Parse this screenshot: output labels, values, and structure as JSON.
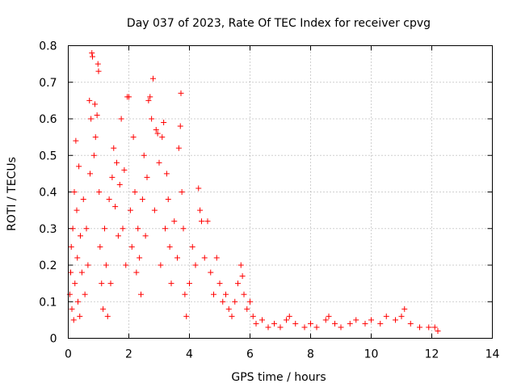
{
  "chart_data": {
    "type": "scatter",
    "title": "Day 037 of 2023, Rate Of TEC Index for receiver cpvg",
    "xlabel": "GPS time / hours",
    "ylabel": "ROTI / TECUs",
    "xlim": [
      0,
      14
    ],
    "ylim": [
      0,
      0.8
    ],
    "x_ticks": [
      0,
      2,
      4,
      6,
      8,
      10,
      12,
      14
    ],
    "y_ticks": [
      0,
      0.1,
      0.2,
      0.3,
      0.4,
      0.5,
      0.6,
      0.7,
      0.8
    ],
    "x_tick_labels": [
      "0",
      "2",
      "4",
      "6",
      "8",
      "10",
      "12",
      "14"
    ],
    "y_tick_labels": [
      "0",
      "0.1",
      "0.2",
      "0.3",
      "0.4",
      "0.5",
      "0.6",
      "0.7",
      "0.8"
    ],
    "grid": true,
    "marker": "plus",
    "color": "#ff0000",
    "series": [
      {
        "name": "ROTI",
        "points": [
          [
            0.05,
            0.12
          ],
          [
            0.08,
            0.18
          ],
          [
            0.1,
            0.25
          ],
          [
            0.12,
            0.08
          ],
          [
            0.15,
            0.3
          ],
          [
            0.18,
            0.05
          ],
          [
            0.2,
            0.4
          ],
          [
            0.22,
            0.15
          ],
          [
            0.25,
            0.54
          ],
          [
            0.28,
            0.35
          ],
          [
            0.3,
            0.22
          ],
          [
            0.32,
            0.1
          ],
          [
            0.35,
            0.47
          ],
          [
            0.38,
            0.06
          ],
          [
            0.4,
            0.28
          ],
          [
            0.45,
            0.18
          ],
          [
            0.5,
            0.38
          ],
          [
            0.55,
            0.12
          ],
          [
            0.6,
            0.3
          ],
          [
            0.65,
            0.2
          ],
          [
            0.7,
            0.65
          ],
          [
            0.72,
            0.45
          ],
          [
            0.75,
            0.6
          ],
          [
            0.78,
            0.78
          ],
          [
            0.8,
            0.77
          ],
          [
            0.85,
            0.5
          ],
          [
            0.88,
            0.64
          ],
          [
            0.9,
            0.55
          ],
          [
            0.95,
            0.61
          ],
          [
            0.98,
            0.75
          ],
          [
            1.0,
            0.73
          ],
          [
            1.02,
            0.4
          ],
          [
            1.05,
            0.25
          ],
          [
            1.1,
            0.15
          ],
          [
            1.15,
            0.08
          ],
          [
            1.2,
            0.3
          ],
          [
            1.25,
            0.2
          ],
          [
            1.3,
            0.06
          ],
          [
            1.35,
            0.38
          ],
          [
            1.4,
            0.15
          ],
          [
            1.45,
            0.44
          ],
          [
            1.5,
            0.52
          ],
          [
            1.55,
            0.36
          ],
          [
            1.6,
            0.48
          ],
          [
            1.65,
            0.28
          ],
          [
            1.7,
            0.42
          ],
          [
            1.75,
            0.6
          ],
          [
            1.8,
            0.3
          ],
          [
            1.85,
            0.46
          ],
          [
            1.9,
            0.2
          ],
          [
            1.95,
            0.66
          ],
          [
            2.0,
            0.66
          ],
          [
            2.05,
            0.35
          ],
          [
            2.1,
            0.25
          ],
          [
            2.15,
            0.55
          ],
          [
            2.2,
            0.4
          ],
          [
            2.25,
            0.18
          ],
          [
            2.3,
            0.3
          ],
          [
            2.35,
            0.22
          ],
          [
            2.4,
            0.12
          ],
          [
            2.45,
            0.38
          ],
          [
            2.5,
            0.5
          ],
          [
            2.55,
            0.28
          ],
          [
            2.6,
            0.44
          ],
          [
            2.65,
            0.65
          ],
          [
            2.7,
            0.66
          ],
          [
            2.75,
            0.6
          ],
          [
            2.8,
            0.71
          ],
          [
            2.85,
            0.35
          ],
          [
            2.9,
            0.57
          ],
          [
            2.95,
            0.56
          ],
          [
            3.0,
            0.48
          ],
          [
            3.05,
            0.2
          ],
          [
            3.1,
            0.55
          ],
          [
            3.15,
            0.59
          ],
          [
            3.2,
            0.3
          ],
          [
            3.25,
            0.45
          ],
          [
            3.3,
            0.38
          ],
          [
            3.35,
            0.25
          ],
          [
            3.4,
            0.15
          ],
          [
            3.5,
            0.32
          ],
          [
            3.6,
            0.22
          ],
          [
            3.65,
            0.52
          ],
          [
            3.7,
            0.58
          ],
          [
            3.72,
            0.67
          ],
          [
            3.75,
            0.4
          ],
          [
            3.8,
            0.3
          ],
          [
            3.85,
            0.12
          ],
          [
            3.9,
            0.06
          ],
          [
            4.0,
            0.15
          ],
          [
            4.1,
            0.25
          ],
          [
            4.2,
            0.2
          ],
          [
            4.3,
            0.41
          ],
          [
            4.35,
            0.35
          ],
          [
            4.4,
            0.32
          ],
          [
            4.5,
            0.22
          ],
          [
            4.6,
            0.32
          ],
          [
            4.7,
            0.18
          ],
          [
            4.8,
            0.12
          ],
          [
            4.9,
            0.22
          ],
          [
            5.0,
            0.15
          ],
          [
            5.1,
            0.1
          ],
          [
            5.2,
            0.12
          ],
          [
            5.3,
            0.08
          ],
          [
            5.4,
            0.06
          ],
          [
            5.5,
            0.1
          ],
          [
            5.6,
            0.15
          ],
          [
            5.7,
            0.2
          ],
          [
            5.75,
            0.17
          ],
          [
            5.8,
            0.12
          ],
          [
            5.9,
            0.08
          ],
          [
            6.0,
            0.1
          ],
          [
            6.1,
            0.06
          ],
          [
            6.2,
            0.04
          ],
          [
            6.4,
            0.05
          ],
          [
            6.6,
            0.03
          ],
          [
            6.8,
            0.04
          ],
          [
            7.0,
            0.03
          ],
          [
            7.2,
            0.05
          ],
          [
            7.3,
            0.06
          ],
          [
            7.5,
            0.04
          ],
          [
            7.8,
            0.03
          ],
          [
            8.0,
            0.04
          ],
          [
            8.2,
            0.03
          ],
          [
            8.5,
            0.05
          ],
          [
            8.6,
            0.06
          ],
          [
            8.8,
            0.04
          ],
          [
            9.0,
            0.03
          ],
          [
            9.3,
            0.04
          ],
          [
            9.5,
            0.05
          ],
          [
            9.8,
            0.04
          ],
          [
            10.0,
            0.05
          ],
          [
            10.3,
            0.04
          ],
          [
            10.5,
            0.06
          ],
          [
            10.8,
            0.05
          ],
          [
            11.0,
            0.06
          ],
          [
            11.1,
            0.08
          ],
          [
            11.3,
            0.04
          ],
          [
            11.6,
            0.03
          ],
          [
            11.9,
            0.03
          ],
          [
            12.1,
            0.03
          ],
          [
            12.2,
            0.02
          ]
        ]
      }
    ]
  }
}
